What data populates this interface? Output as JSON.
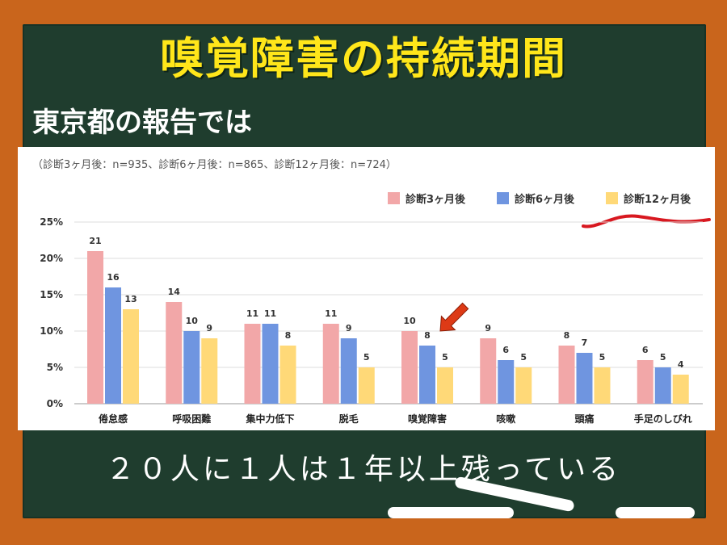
{
  "title": "嗅覚障害の持続期間",
  "subtitle": "東京都の報告では",
  "note": "（診断3ヶ月後：n=935、診断6ヶ月後：n=865、診断12ヶ月後：n=724）",
  "bottom_text": "２０人に１人は１年以上残っている",
  "colors": {
    "board": "#1f3d2e",
    "frame": "#c9651c",
    "title": "#ffe61a",
    "series_3m": "#f2a7a8",
    "series_6m": "#6f95e0",
    "series_12m": "#ffd978",
    "arrow": "#dd3a16",
    "underline": "#d81820"
  },
  "chart_data": {
    "type": "bar",
    "categories": [
      "倦怠感",
      "呼吸困難",
      "集中力低下",
      "脱毛",
      "嗅覚障害",
      "咳嗽",
      "頭痛",
      "手足のしびれ"
    ],
    "series": [
      {
        "name": "診断3ヶ月後",
        "values": [
          21,
          14,
          11,
          11,
          10,
          9,
          8,
          6
        ]
      },
      {
        "name": "診断6ヶ月後",
        "values": [
          16,
          10,
          11,
          9,
          8,
          6,
          7,
          5
        ]
      },
      {
        "name": "診断12ヶ月後",
        "values": [
          13,
          9,
          8,
          5,
          5,
          5,
          5,
          4
        ]
      }
    ],
    "ylim": [
      0,
      25
    ],
    "yticks": [
      "0%",
      "5%",
      "10%",
      "15%",
      "20%",
      "25%"
    ],
    "ytick_values": [
      0,
      5,
      10,
      15,
      20,
      25
    ],
    "grid": true,
    "legend_position": "top-right",
    "highlight_category": "嗅覚障害"
  }
}
